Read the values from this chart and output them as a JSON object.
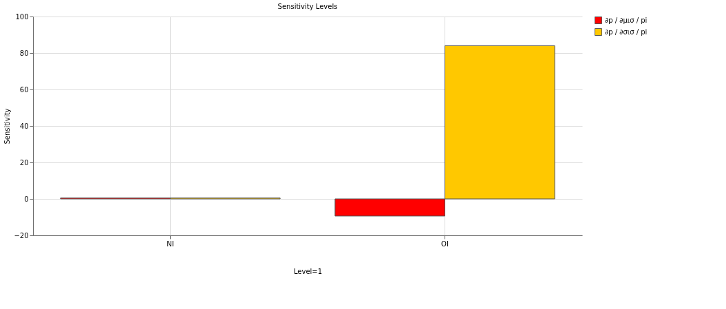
{
  "chart_data": {
    "type": "bar",
    "title": "Sensitivity Levels",
    "xlabel": "Level=1",
    "ylabel": "Sensitivity",
    "categories": [
      "NI",
      "OI"
    ],
    "series": [
      {
        "name": "∂p / ∂μισ / pi",
        "color": "#ff0000",
        "values": [
          0.5,
          -9.4
        ]
      },
      {
        "name": "∂p / ∂σισ / pi",
        "color": "#ffc800",
        "values": [
          0.5,
          84
        ]
      }
    ],
    "ylim": [
      -20,
      100
    ],
    "yticks": [
      -20,
      0,
      20,
      40,
      60,
      80,
      100
    ],
    "grid": true,
    "legend": "right"
  }
}
